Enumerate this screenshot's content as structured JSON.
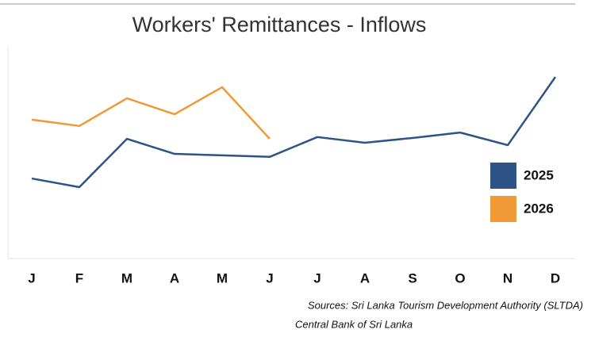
{
  "chart_data": {
    "type": "line",
    "title": "Workers' Remittances  - Inflows",
    "categories": [
      "J",
      "F",
      "M",
      "A",
      "M",
      "J",
      "J",
      "A",
      "S",
      "O",
      "N",
      "D"
    ],
    "series": [
      {
        "name": "2025",
        "color": "#2e5386",
        "values": [
          564,
          535,
          696,
          646,
          641,
          636,
          702,
          683,
          699,
          717,
          675,
          902
        ]
      },
      {
        "name": "2026",
        "color": "#ef9a36",
        "values": [
          760,
          739,
          831,
          778,
          868,
          696,
          null,
          null,
          null,
          null,
          null,
          null
        ]
      }
    ],
    "ylim": [
      300,
      1000
    ],
    "grid": false,
    "legend": "right",
    "sources": [
      "Sources: Sri Lanka Tourism Development Authority (SLTDA)",
      "Central Bank of Sri Lanka"
    ]
  }
}
